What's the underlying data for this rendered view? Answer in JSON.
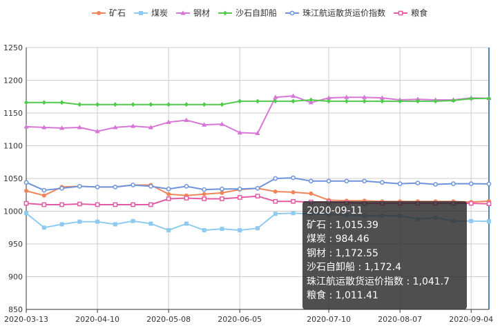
{
  "chart_data": {
    "type": "line",
    "x": [
      "2020-03-13",
      "2020-03-20",
      "2020-03-27",
      "2020-04-03",
      "2020-04-10",
      "2020-04-17",
      "2020-04-24",
      "2020-05-01",
      "2020-05-08",
      "2020-05-15",
      "2020-05-22",
      "2020-05-29",
      "2020-06-05",
      "2020-06-12",
      "2020-06-19",
      "2020-06-26",
      "2020-07-03",
      "2020-07-10",
      "2020-07-17",
      "2020-07-24",
      "2020-07-31",
      "2020-08-07",
      "2020-08-14",
      "2020-08-21",
      "2020-08-28",
      "2020-09-04",
      "2020-09-11"
    ],
    "xticks": [
      "2020-03-13",
      "2020-04-10",
      "2020-05-08",
      "2020-06-05",
      "2020-07-10",
      "2020-08-07",
      "2020-09-04"
    ],
    "ylim": [
      850,
      1250
    ],
    "yticks": [
      850,
      900,
      950,
      1000,
      1050,
      1100,
      1150,
      1200,
      1250
    ],
    "grid": true,
    "legend_position": "top",
    "series": [
      {
        "name": "矿石",
        "color": "#f0855a",
        "marker": "circle",
        "values": [
          1031,
          1024,
          1037,
          1038,
          1037,
          1037,
          1040,
          1040,
          1026,
          1024,
          1026,
          1028,
          1033,
          1035,
          1030,
          1029,
          1027,
          1017,
          1016,
          1016,
          1015,
          1015,
          1015,
          1015,
          1015,
          1014,
          1015.39
        ]
      },
      {
        "name": "煤炭",
        "color": "#8fcbf0",
        "marker": "square",
        "values": [
          997,
          975,
          980,
          984,
          984,
          980,
          985,
          981,
          971,
          981,
          971,
          973,
          971,
          974,
          996,
          997,
          996,
          995,
          994,
          993,
          993,
          993,
          988,
          990,
          985,
          985,
          984.46
        ]
      },
      {
        "name": "钢材",
        "color": "#d776d6",
        "marker": "triangle",
        "values": [
          1129,
          1128,
          1127,
          1128,
          1122,
          1128,
          1130,
          1128,
          1136,
          1139,
          1132,
          1133,
          1120,
          1119,
          1174,
          1176,
          1166,
          1173,
          1174,
          1174,
          1173,
          1170,
          1171,
          1170,
          1170,
          1173,
          1172.55
        ]
      },
      {
        "name": "沙石自卸船",
        "color": "#4fca4a",
        "marker": "diamond",
        "values": [
          1166,
          1166,
          1166,
          1163,
          1163,
          1163,
          1163,
          1163,
          1163,
          1163,
          1163,
          1163,
          1168,
          1168,
          1168,
          1168,
          1170,
          1168,
          1168,
          1168,
          1168,
          1168,
          1168,
          1168,
          1169,
          1172,
          1172.4
        ]
      },
      {
        "name": "珠江航运散货运价指数",
        "color": "#6d93dc",
        "marker": "hollow-circle",
        "values": [
          1044,
          1032,
          1035,
          1038,
          1037,
          1037,
          1040,
          1038,
          1034,
          1038,
          1033,
          1034,
          1034,
          1035,
          1050,
          1051,
          1046,
          1046,
          1046,
          1046,
          1044,
          1042,
          1043,
          1041,
          1042,
          1042,
          1041.7
        ]
      },
      {
        "name": "粮食",
        "color": "#e65aa4",
        "marker": "hollow-square",
        "values": [
          1012,
          1010,
          1010,
          1011,
          1010,
          1010,
          1010,
          1010,
          1019,
          1020,
          1019,
          1019,
          1021,
          1023,
          1015,
          1015,
          1014,
          1014,
          1013,
          1012,
          1012,
          1012,
          1012,
          1012,
          1012,
          1012,
          1011.41
        ]
      }
    ],
    "tooltip": {
      "title": "2020-09-11",
      "rows": [
        "矿石 : 1,015.39",
        "煤炭 : 984.46",
        "钢材 : 1,172.55",
        "沙石自卸船 : 1,172.4",
        "珠江航运散货运价指数 : 1,041.7",
        "粮食 : 1,011.41"
      ]
    }
  }
}
